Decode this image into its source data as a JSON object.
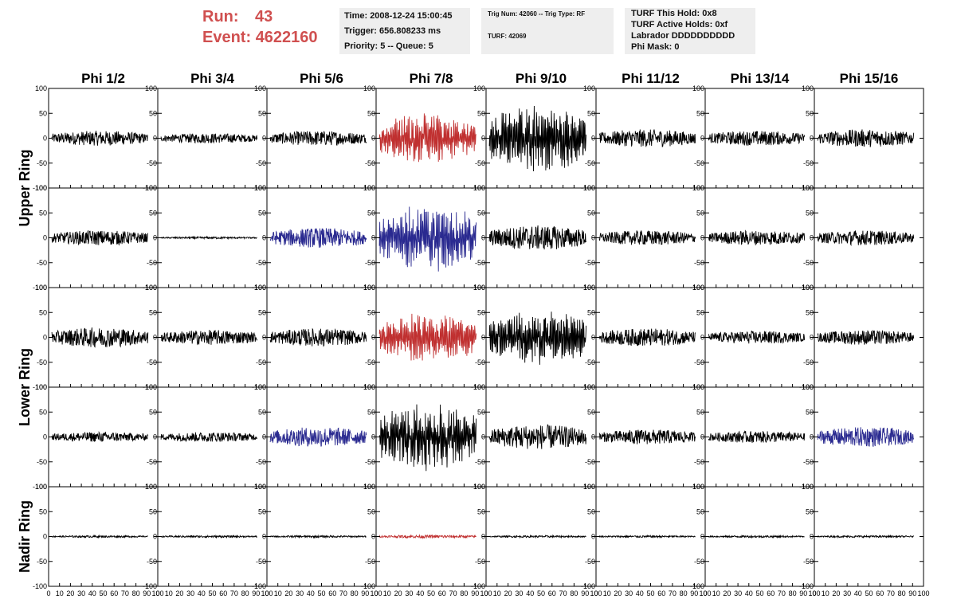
{
  "header": {
    "run_label": "Run:",
    "run_value": "43",
    "event_label": "Event:",
    "event_value": "4622160"
  },
  "info_time": {
    "time": "Time: 2008-12-24 15:00:45",
    "trigger": "Trigger: 656.808233 ms",
    "priority": "Priority: 5 -- Queue: 5"
  },
  "info_trig": {
    "trig": "Trig Num: 42060 -- Trig Type: RF",
    "turf": "TURF: 42069"
  },
  "info_turf": {
    "hold": "TURF This Hold: 0x8",
    "active": "TURF Active Holds: 0xf",
    "labrador": "Labrador DDDDDDDDDD",
    "phimask": "Phi Mask: 0"
  },
  "colors": {
    "normal": "#000000",
    "red": "#c03030",
    "blue": "#2a2a90",
    "header": "#d05050"
  },
  "chart_data": {
    "type": "line",
    "columns": [
      "Phi 1/2",
      "Phi 3/4",
      "Phi 5/6",
      "Phi 7/8",
      "Phi 9/10",
      "Phi 11/12",
      "Phi 13/14",
      "Phi 15/16"
    ],
    "ring_labels": [
      "Upper Ring",
      "Lower Ring",
      "Nadir Ring"
    ],
    "xlim": [
      0,
      100
    ],
    "ylim": [
      -100,
      100
    ],
    "x_ticks": [
      "0",
      "10",
      "20",
      "30",
      "40",
      "50",
      "60",
      "70",
      "80",
      "90",
      "100"
    ],
    "y_ticks_left": [
      "100",
      "50",
      "0",
      "-50",
      "-100"
    ],
    "y_ticks_right": [
      "100",
      "50",
      "0",
      "-50",
      "-100"
    ],
    "rows": [
      {
        "amplitude": [
          15,
          10,
          15,
          40,
          55,
          18,
          15,
          18
        ],
        "color": [
          "normal",
          "normal",
          "normal",
          "red",
          "normal",
          "normal",
          "normal",
          "normal"
        ]
      },
      {
        "amplitude": [
          15,
          2,
          20,
          55,
          25,
          15,
          15,
          15
        ],
        "color": [
          "normal",
          "normal",
          "blue",
          "blue",
          "normal",
          "normal",
          "normal",
          "normal"
        ]
      },
      {
        "amplitude": [
          20,
          15,
          18,
          40,
          45,
          18,
          13,
          15
        ],
        "color": [
          "normal",
          "normal",
          "normal",
          "red",
          "normal",
          "normal",
          "normal",
          "normal"
        ]
      },
      {
        "amplitude": [
          10,
          10,
          20,
          55,
          25,
          15,
          12,
          20
        ],
        "color": [
          "normal",
          "normal",
          "blue",
          "normal",
          "normal",
          "normal",
          "normal",
          "blue"
        ]
      },
      {
        "amplitude": [
          2,
          2,
          2,
          3,
          2,
          2,
          2,
          2
        ],
        "color": [
          "normal",
          "normal",
          "normal",
          "red",
          "normal",
          "normal",
          "normal",
          "normal"
        ]
      }
    ]
  }
}
